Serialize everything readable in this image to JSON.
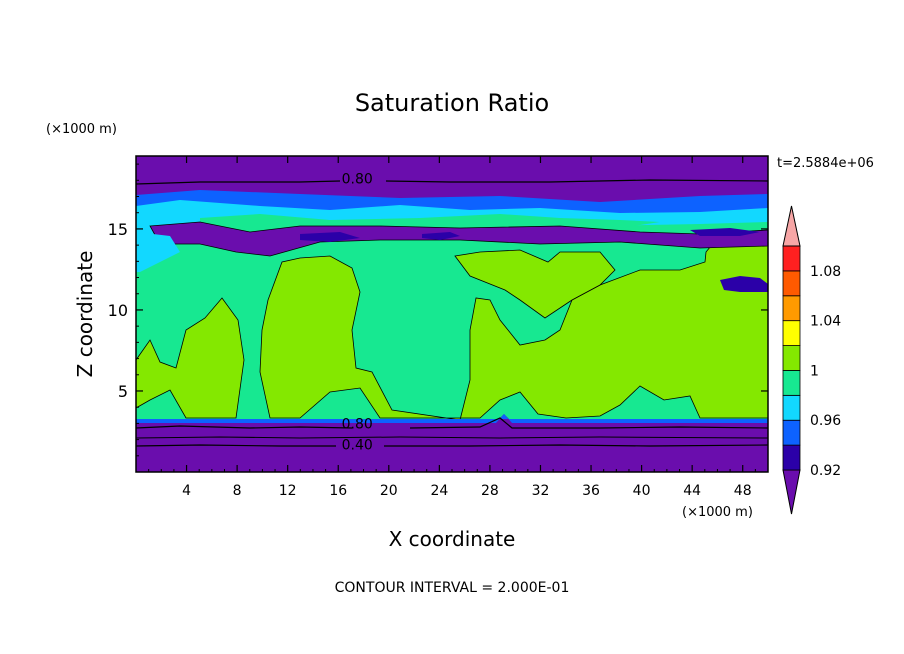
{
  "chart_data": {
    "type": "heatmap",
    "title": "Saturation Ratio",
    "xlabel": "X coordinate",
    "ylabel": "Z coordinate",
    "x_unit": "(×1000 m)",
    "y_unit": "(×1000 m)",
    "time_label": "t=2.5884e+06",
    "footer": "CONTOUR INTERVAL = 2.000E-01",
    "xlim": [
      0,
      50
    ],
    "ylim": [
      0,
      19.5
    ],
    "x_ticks": [
      4,
      8,
      12,
      16,
      20,
      24,
      28,
      32,
      36,
      40,
      44,
      48
    ],
    "y_ticks": [
      5,
      10,
      15
    ],
    "contour_labels": [
      {
        "text": "0.80",
        "x": 17.5,
        "z": 18.1
      },
      {
        "text": "0.80",
        "x": 17.5,
        "z": 3.0
      },
      {
        "text": "0.40",
        "x": 17.5,
        "z": 1.7
      }
    ],
    "layers": [
      {
        "z_bottom": 0,
        "z_top": 3.3,
        "value": "<0.9"
      },
      {
        "z_bottom": 3.3,
        "z_top": 16,
        "value": "0.98-1.02"
      },
      {
        "z_bottom": 16,
        "z_top": 19.5,
        "value": "0.9-0.96"
      }
    ],
    "colorbar": {
      "labels": [
        "1.08",
        "1.04",
        "1",
        "0.96",
        "0.92"
      ],
      "colors": [
        "#6a0dad",
        "#2b00a8",
        "#0d62ff",
        "#12d8ff",
        "#17e891",
        "#84e800",
        "#ffff00",
        "#ff9a00",
        "#ff5a00",
        "#ff2020",
        "#f7a6a6"
      ]
    }
  }
}
